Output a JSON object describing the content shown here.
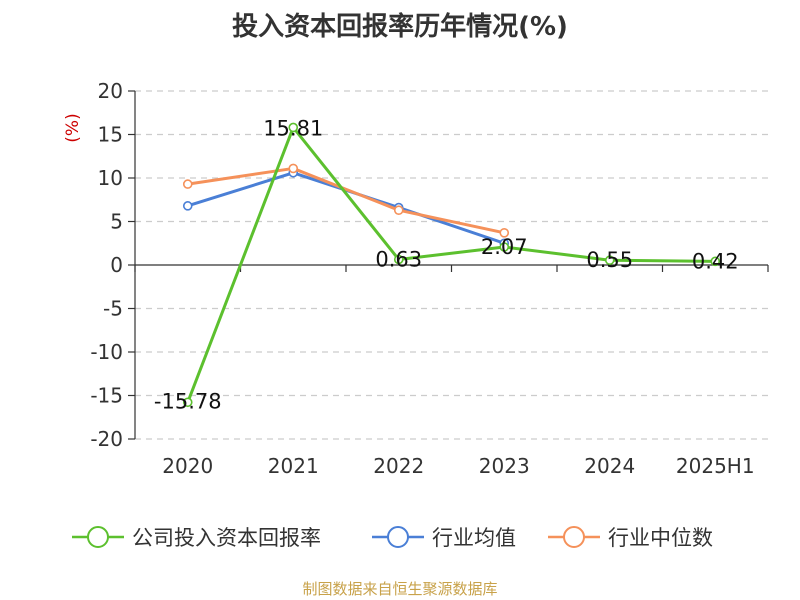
{
  "chart_data": {
    "type": "line",
    "title": "投入资本回报率历年情况(%)",
    "ylabel": "(%)",
    "categories": [
      "2020",
      "2021",
      "2022",
      "2023",
      "2024",
      "2025H1"
    ],
    "ylim": [
      -20,
      20
    ],
    "yticks": [
      20,
      15,
      10,
      5,
      0,
      -5,
      -10,
      -15,
      -20
    ],
    "grid": true,
    "legend_position": "bottom",
    "series": [
      {
        "name": "公司投入资本回报率",
        "color": "#5cc02e",
        "values": [
          -15.78,
          15.81,
          0.63,
          2.07,
          0.55,
          0.42
        ],
        "labels": [
          "-15.78",
          "15.81",
          "0.63",
          "2.07",
          "0.55",
          "0.42"
        ]
      },
      {
        "name": "行业均值",
        "color": "#4a7fd6",
        "values": [
          6.8,
          10.6,
          6.6,
          2.5,
          null,
          null
        ]
      },
      {
        "name": "行业中位数",
        "color": "#f5915a",
        "values": [
          9.3,
          11.1,
          6.3,
          3.7,
          null,
          null
        ]
      }
    ]
  },
  "source": "制图数据来自恒生聚源数据库"
}
